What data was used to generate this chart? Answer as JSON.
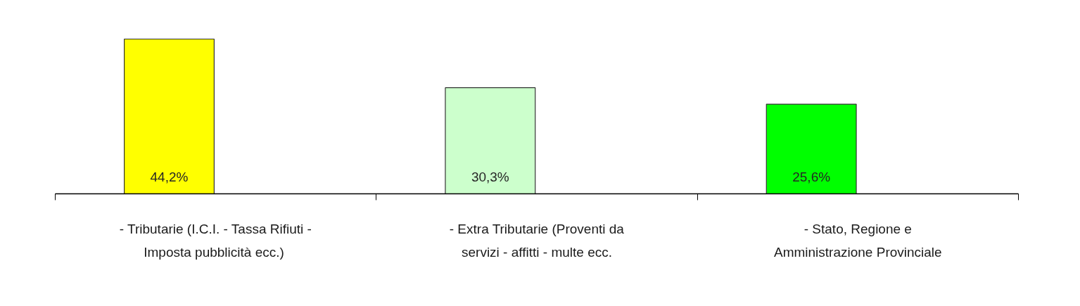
{
  "chart_data": {
    "type": "bar",
    "categories": [
      "- Tributarie (I.C.I. - Tassa Rifiuti -\nImposta pubblicità  ecc.)",
      "- Extra Tributarie (Proventi da\nservizi - affitti - multe ecc.",
      "- Stato, Regione e\nAmministrazione Provinciale"
    ],
    "values": [
      44.2,
      30.3,
      25.6
    ],
    "colors": [
      "#ffff00",
      "#ccffcc",
      "#00ff00"
    ],
    "value_labels": [
      "44,2%",
      "30,3%",
      "25,6%"
    ]
  }
}
